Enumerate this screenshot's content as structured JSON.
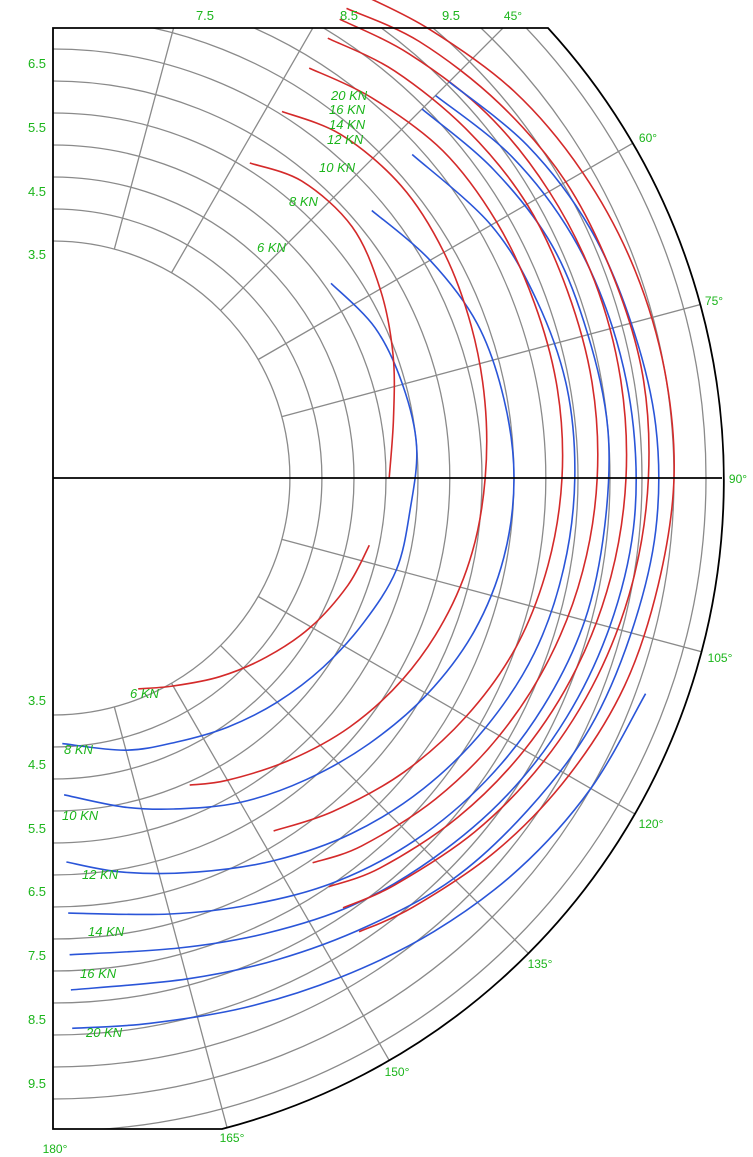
{
  "chart_data": {
    "type": "line",
    "title": "",
    "radial_ticks_upper": [
      "6.5",
      "5.5",
      "4.5",
      "3.5"
    ],
    "radial_ticks_top": [
      "7.5",
      "8.5",
      "9.5"
    ],
    "radial_ticks_lower": [
      "3.5",
      "4.5",
      "5.5",
      "6.5",
      "7.5",
      "8.5",
      "9.5"
    ],
    "angle_labels": [
      {
        "deg": 45,
        "text": "45°"
      },
      {
        "deg": 60,
        "text": "60°"
      },
      {
        "deg": 75,
        "text": "75°"
      },
      {
        "deg": 90,
        "text": "90°"
      },
      {
        "deg": 105,
        "text": "105°"
      },
      {
        "deg": 120,
        "text": "120°"
      },
      {
        "deg": 135,
        "text": "135°"
      },
      {
        "deg": 150,
        "text": "150°"
      },
      {
        "deg": 165,
        "text": "165°"
      },
      {
        "deg": 180,
        "text": "180°"
      }
    ],
    "angle_unit": "deg",
    "speed_unit": "kn",
    "polar_series": [
      {
        "label": "6 KN",
        "red": [
          [
            32,
            5.6
          ],
          [
            40,
            5.85
          ],
          [
            50,
            5.9
          ],
          [
            60,
            5.7
          ],
          [
            70,
            5.45
          ],
          [
            80,
            5.2
          ],
          [
            90,
            5.05
          ]
        ],
        "red_low": [
          [
            102,
            4.85
          ],
          [
            110,
            4.7
          ],
          [
            120,
            4.45
          ],
          [
            130,
            4.15
          ],
          [
            140,
            3.85
          ],
          [
            150,
            3.55
          ],
          [
            158,
            3.35
          ]
        ],
        "blue": [
          [
            55,
            5.1
          ],
          [
            65,
            5.35
          ],
          [
            75,
            5.45
          ],
          [
            85,
            5.5
          ],
          [
            95,
            5.4
          ],
          [
            105,
            5.35
          ],
          [
            115,
            5.15
          ],
          [
            125,
            4.95
          ],
          [
            135,
            4.75
          ],
          [
            145,
            4.55
          ],
          [
            155,
            4.35
          ],
          [
            165,
            4.2
          ],
          [
            178,
            3.95
          ]
        ]
      },
      {
        "label": "8 KN",
        "red": [
          [
            32,
            6.55
          ],
          [
            40,
            6.8
          ],
          [
            50,
            6.9
          ],
          [
            60,
            6.85
          ],
          [
            70,
            6.75
          ],
          [
            80,
            6.65
          ],
          [
            90,
            6.55
          ],
          [
            100,
            6.45
          ],
          [
            110,
            6.3
          ],
          [
            120,
            6.1
          ],
          [
            130,
            5.85
          ],
          [
            140,
            5.55
          ],
          [
            150,
            5.25
          ],
          [
            156,
            5.05
          ]
        ],
        "blue": [
          [
            50,
            6.3
          ],
          [
            60,
            6.6
          ],
          [
            70,
            6.85
          ],
          [
            80,
            6.95
          ],
          [
            90,
            7.0
          ],
          [
            100,
            6.95
          ],
          [
            110,
            6.8
          ],
          [
            120,
            6.55
          ],
          [
            130,
            6.25
          ],
          [
            140,
            5.95
          ],
          [
            150,
            5.65
          ],
          [
            160,
            5.3
          ],
          [
            168,
            5.05
          ],
          [
            178,
            4.75
          ]
        ]
      },
      {
        "label": "10 KN",
        "red": [
          [
            32,
            7.35
          ],
          [
            40,
            7.55
          ],
          [
            50,
            7.75
          ],
          [
            60,
            7.8
          ],
          [
            70,
            7.8
          ],
          [
            80,
            7.8
          ],
          [
            90,
            7.75
          ],
          [
            100,
            7.65
          ],
          [
            110,
            7.5
          ],
          [
            120,
            7.25
          ],
          [
            130,
            6.95
          ],
          [
            140,
            6.6
          ],
          [
            148,
            6.3
          ]
        ],
        "blue": [
          [
            48,
            7.35
          ],
          [
            60,
            7.7
          ],
          [
            70,
            7.85
          ],
          [
            80,
            7.95
          ],
          [
            90,
            7.95
          ],
          [
            100,
            7.9
          ],
          [
            110,
            7.8
          ],
          [
            120,
            7.6
          ],
          [
            130,
            7.35
          ],
          [
            140,
            7.05
          ],
          [
            150,
            6.7
          ],
          [
            160,
            6.35
          ],
          [
            170,
            6.05
          ],
          [
            178,
            5.8
          ]
        ]
      },
      {
        "label": "12 KN",
        "red": [
          [
            32,
            7.9
          ],
          [
            40,
            8.1
          ],
          [
            50,
            8.25
          ],
          [
            60,
            8.35
          ],
          [
            70,
            8.35
          ],
          [
            80,
            8.35
          ],
          [
            90,
            8.3
          ],
          [
            100,
            8.2
          ],
          [
            110,
            8.05
          ],
          [
            120,
            7.85
          ],
          [
            130,
            7.6
          ],
          [
            140,
            7.3
          ],
          [
            146,
            7.05
          ]
        ],
        "blue": [
          [
            45,
            7.95
          ],
          [
            55,
            8.2
          ],
          [
            65,
            8.4
          ],
          [
            75,
            8.45
          ],
          [
            85,
            8.5
          ],
          [
            95,
            8.45
          ],
          [
            105,
            8.4
          ],
          [
            115,
            8.25
          ],
          [
            125,
            8.05
          ],
          [
            135,
            7.8
          ],
          [
            145,
            7.5
          ],
          [
            155,
            7.15
          ],
          [
            165,
            6.85
          ],
          [
            178,
            6.6
          ]
        ]
      },
      {
        "label": "14 KN",
        "red": [
          [
            32,
            8.25
          ],
          [
            40,
            8.45
          ],
          [
            50,
            8.65
          ],
          [
            60,
            8.75
          ],
          [
            70,
            8.8
          ],
          [
            80,
            8.8
          ],
          [
            90,
            8.75
          ],
          [
            100,
            8.65
          ],
          [
            110,
            8.5
          ],
          [
            120,
            8.3
          ],
          [
            130,
            8.05
          ],
          [
            140,
            7.75
          ],
          [
            146,
            7.5
          ]
        ],
        "blue": [
          [
            45,
            8.25
          ],
          [
            55,
            8.55
          ],
          [
            65,
            8.75
          ],
          [
            75,
            8.85
          ],
          [
            85,
            8.9
          ],
          [
            95,
            8.9
          ],
          [
            105,
            8.8
          ],
          [
            115,
            8.65
          ],
          [
            125,
            8.45
          ],
          [
            135,
            8.2
          ],
          [
            145,
            7.95
          ],
          [
            155,
            7.65
          ],
          [
            165,
            7.4
          ],
          [
            178,
            7.25
          ]
        ]
      },
      {
        "label": "16 KN",
        "red": [
          [
            32,
            8.45
          ],
          [
            40,
            8.7
          ],
          [
            50,
            8.9
          ],
          [
            60,
            9.05
          ],
          [
            70,
            9.1
          ],
          [
            80,
            9.15
          ],
          [
            90,
            9.1
          ],
          [
            100,
            9.0
          ],
          [
            110,
            8.85
          ],
          [
            120,
            8.65
          ],
          [
            130,
            8.4
          ],
          [
            140,
            8.1
          ],
          [
            146,
            7.9
          ]
        ],
        "blue": [
          [
            45,
            8.55
          ],
          [
            55,
            8.85
          ],
          [
            65,
            9.05
          ],
          [
            75,
            9.15
          ],
          [
            85,
            9.25
          ],
          [
            95,
            9.25
          ],
          [
            105,
            9.15
          ],
          [
            115,
            9.05
          ],
          [
            125,
            8.85
          ],
          [
            135,
            8.65
          ],
          [
            145,
            8.35
          ],
          [
            155,
            8.1
          ],
          [
            165,
            7.9
          ],
          [
            178,
            7.8
          ]
        ]
      },
      {
        "label": "20 KN",
        "red": [
          [
            32,
            8.75
          ],
          [
            40,
            8.95
          ],
          [
            50,
            9.2
          ],
          [
            60,
            9.35
          ],
          [
            70,
            9.45
          ],
          [
            80,
            9.5
          ],
          [
            90,
            9.5
          ],
          [
            100,
            9.4
          ],
          [
            110,
            9.3
          ],
          [
            120,
            9.1
          ],
          [
            130,
            8.85
          ],
          [
            140,
            8.55
          ],
          [
            146,
            8.35
          ]
        ],
        "blue": [
          [
            110,
            9.65
          ],
          [
            120,
            9.5
          ],
          [
            130,
            9.3
          ],
          [
            140,
            9.05
          ],
          [
            150,
            8.8
          ],
          [
            160,
            8.6
          ],
          [
            170,
            8.45
          ],
          [
            178,
            8.4
          ]
        ]
      }
    ],
    "colors": {
      "upwind": "#d42a2a",
      "downwind": "#2a55d8",
      "grid": "#8a8a8a",
      "labels": "#1bb51b",
      "frame": "#000000"
    }
  }
}
